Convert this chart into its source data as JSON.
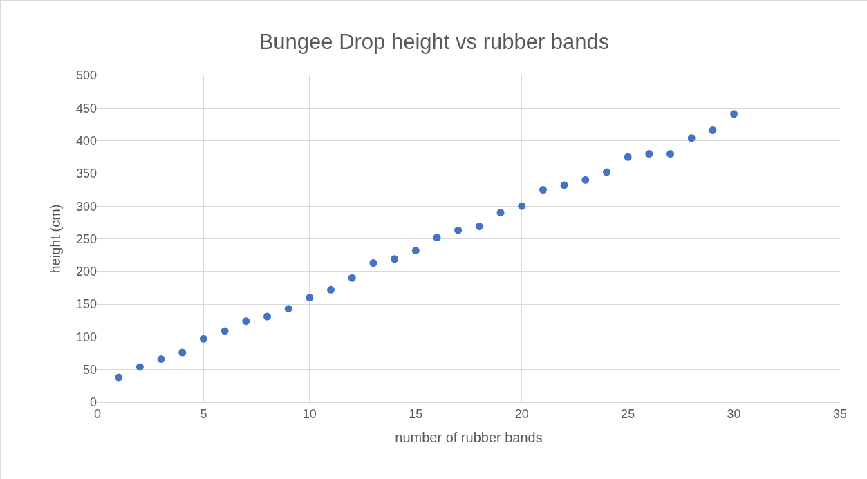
{
  "chart_data": {
    "type": "scatter",
    "title": "Bungee Drop height vs rubber bands",
    "xlabel": "number of rubber bands",
    "ylabel": "height (cm)",
    "x": [
      1,
      2,
      3,
      4,
      5,
      6,
      7,
      8,
      9,
      10,
      11,
      12,
      13,
      14,
      15,
      16,
      17,
      18,
      19,
      20,
      21,
      22,
      23,
      24,
      25,
      26,
      27,
      28,
      29,
      30
    ],
    "series": [
      {
        "color": "#4472c4",
        "values": [
          38,
          54,
          66,
          76,
          97,
          109,
          124,
          131,
          143,
          160,
          172,
          190,
          213,
          219,
          232,
          252,
          263,
          269,
          290,
          300,
          325,
          332,
          340,
          352,
          375,
          380,
          380,
          404,
          416,
          441
        ]
      }
    ],
    "xlim": [
      0,
      35
    ],
    "xticks": [
      0,
      5,
      10,
      15,
      20,
      25,
      30,
      35
    ],
    "ylim": [
      0,
      500
    ],
    "yticks": [
      0,
      50,
      100,
      150,
      200,
      250,
      300,
      350,
      400,
      450,
      500
    ],
    "grid": true,
    "marker": "circle"
  }
}
